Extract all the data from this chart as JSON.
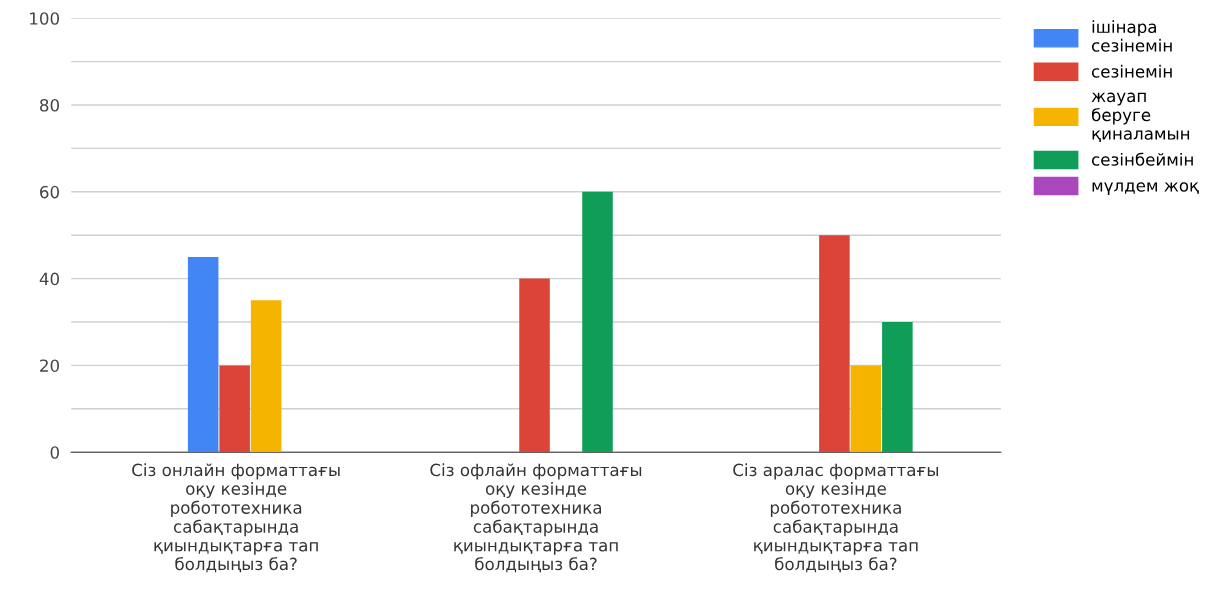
{
  "chart_data": {
    "type": "bar",
    "categories": [
      "Сіз онлайн форматтағы оқу кезінде робототехника сабақтарында қиындықтарға тап болдыңыз ба?",
      "Сіз офлайн форматтағы оқу кезінде робототехника сабақтарында қиындықтарға тап болдыңыз ба?",
      "Сіз аралас форматтағы оқу кезінде робототехника сабақтарында қиындықтарға тап болдыңыз ба?"
    ],
    "series": [
      {
        "name": "ішінара сезінемін",
        "color": "#4285f4",
        "values": [
          45,
          0,
          0
        ]
      },
      {
        "name": "сезінемін",
        "color": "#db4437",
        "values": [
          20,
          40,
          50
        ]
      },
      {
        "name": "жауап беруге қиналамын",
        "color": "#f4b400",
        "values": [
          35,
          0,
          20
        ]
      },
      {
        "name": "сезінбеймін",
        "color": "#0f9d58",
        "values": [
          0,
          60,
          30
        ]
      },
      {
        "name": "мүлдем жоқ",
        "color": "#ab47bc",
        "values": [
          0,
          0,
          0
        ]
      }
    ],
    "ylim": [
      0,
      100
    ],
    "yticks": [
      0,
      {
        "value": 10,
        "label": null
      },
      20,
      {
        "value": 30,
        "label": null
      },
      40,
      {
        "value": 50,
        "label": null
      },
      60,
      {
        "value": 70,
        "label": null
      },
      80,
      {
        "value": 90,
        "label": null
      },
      100
    ],
    "grid": "y",
    "legend": "top right"
  }
}
